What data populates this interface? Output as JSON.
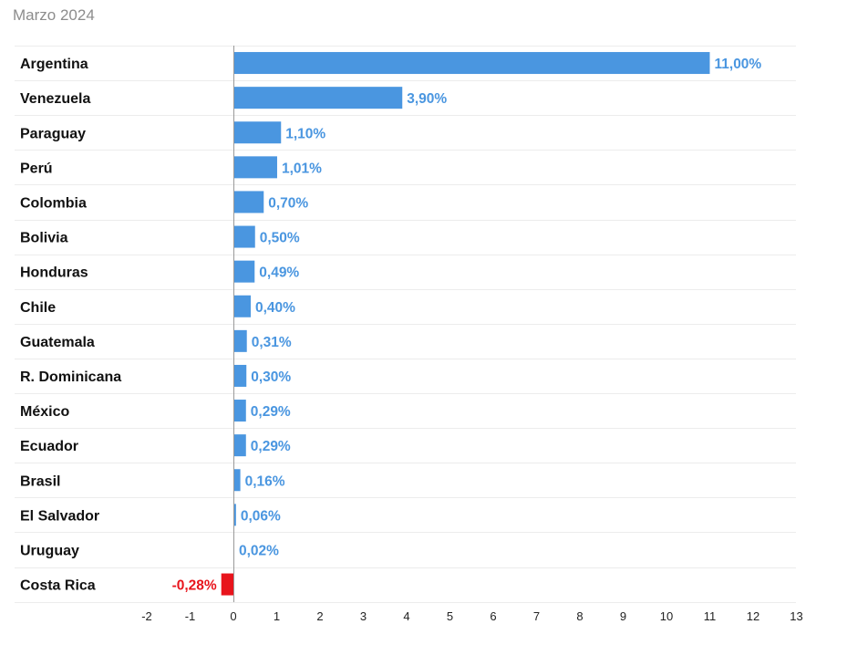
{
  "chart_data": {
    "type": "bar",
    "orientation": "horizontal",
    "title": "",
    "subtitle": "Marzo 2024",
    "xlabel": "",
    "ylabel": "",
    "categories": [
      "Argentina",
      "Venezuela",
      "Paraguay",
      "Perú",
      "Colombia",
      "Bolivia",
      "Honduras",
      "Chile",
      "Guatemala",
      "R. Dominicana",
      "México",
      "Ecuador",
      "Brasil",
      "El Salvador",
      "Uruguay",
      "Costa Rica"
    ],
    "values": [
      11.0,
      3.9,
      1.1,
      1.01,
      0.7,
      0.5,
      0.49,
      0.4,
      0.31,
      0.3,
      0.29,
      0.29,
      0.16,
      0.06,
      0.02,
      -0.28
    ],
    "value_labels": [
      "11,00%",
      "3,90%",
      "1,10%",
      "1,01%",
      "0,70%",
      "0,50%",
      "0,49%",
      "0,40%",
      "0,31%",
      "0,30%",
      "0,29%",
      "0,29%",
      "0,16%",
      "0,06%",
      "0,02%",
      "-0,28%"
    ],
    "xlim": [
      -2,
      13
    ],
    "xticks": [
      -2,
      -1,
      0,
      1,
      2,
      3,
      4,
      5,
      6,
      7,
      8,
      9,
      10,
      11,
      12,
      13
    ],
    "grid": "horizontal",
    "legend": "none",
    "colors": {
      "positive": "#4a96e0",
      "negative": "#e8141c",
      "positive_label": "#4a96e0",
      "negative_label": "#e8141c",
      "row_line": "#ececec",
      "zero_axis": "#9a9a9a"
    }
  }
}
